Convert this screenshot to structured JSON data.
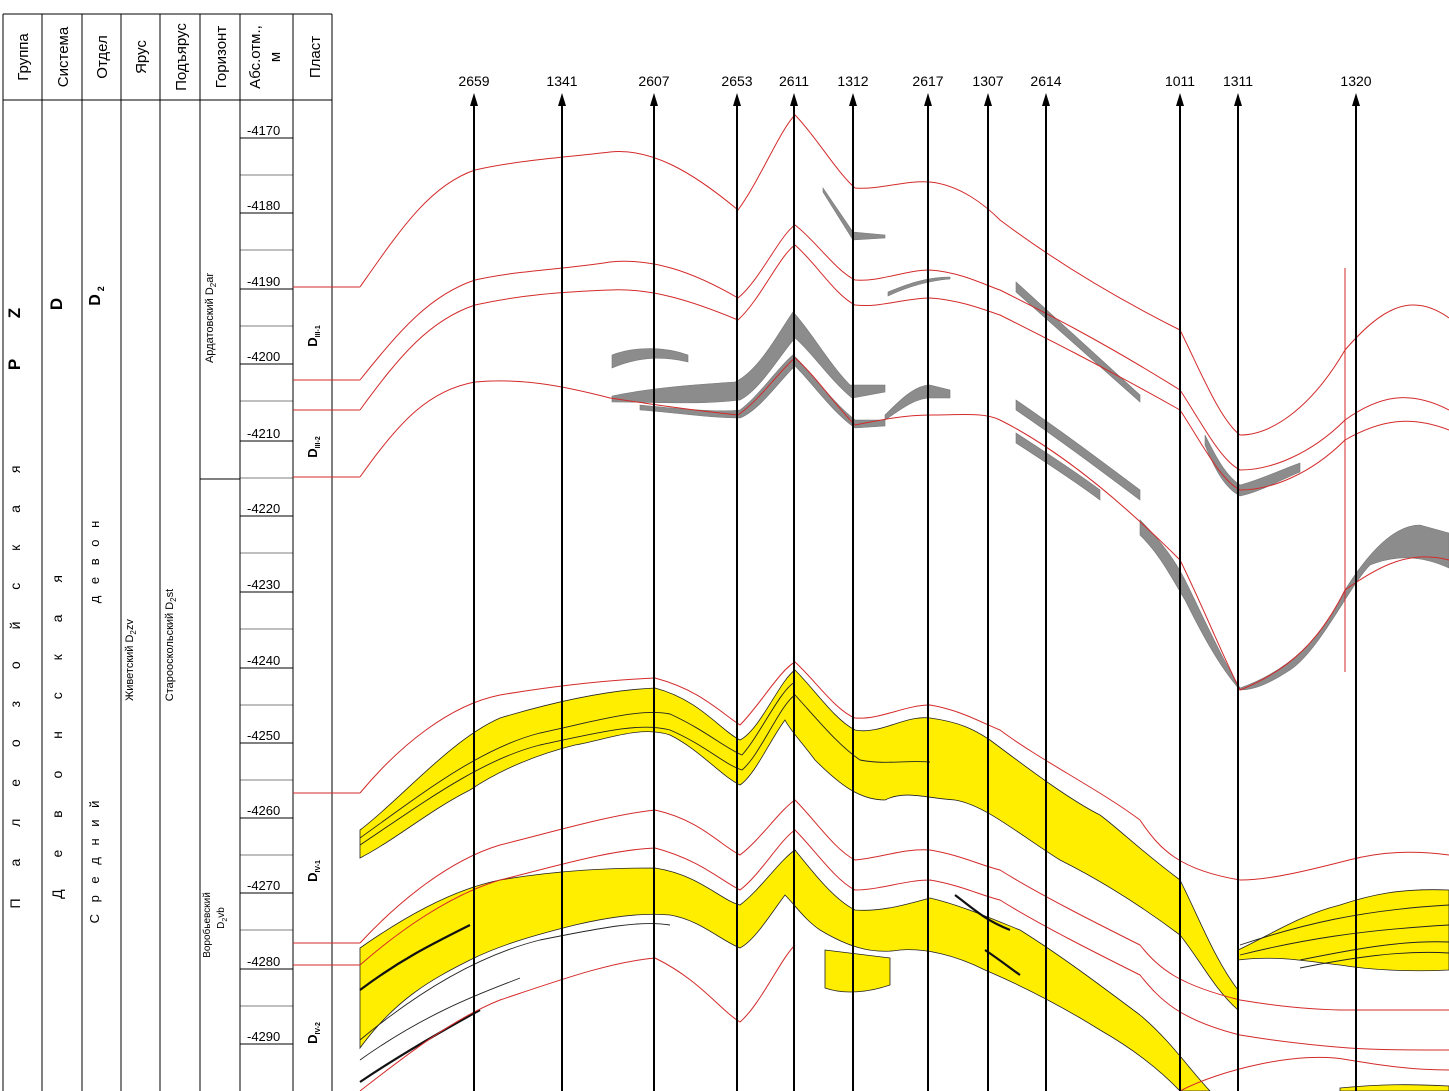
{
  "columns": {
    "headers": [
      "Группа",
      "Система",
      "Отдел",
      "Ярус",
      "Подъярус",
      "Горизонт",
      "Абс.отм.,",
      "м",
      "Пласт"
    ],
    "group": {
      "main": "P Z",
      "sub": "П а л е о з о й с к а я"
    },
    "system": {
      "main": "D",
      "sub": "Д е в о н с к а я"
    },
    "department": {
      "main": "D",
      "main_sub": "2",
      "sub": "С р е д н и й",
      "sub2": "д е в о н"
    },
    "stage": {
      "label": "Живетский D",
      "label_sub": "2",
      "label_tail": "zv"
    },
    "substage": {
      "label": "Старооскольский D",
      "label_sub": "2",
      "label_tail": "st"
    },
    "horizons": [
      {
        "label": "Ардатовский D",
        "sub": "2",
        "tail": "ar"
      },
      {
        "label": "Воробьевский",
        "line2": "D",
        "line2_sub": "2",
        "line2_tail": "vb"
      }
    ],
    "depth_ticks": [
      "-4170",
      "-4180",
      "-4190",
      "-4200",
      "-4210",
      "-4220",
      "-4230",
      "-4240",
      "-4250",
      "-4260",
      "-4270",
      "-4280",
      "-4290"
    ],
    "plasts": [
      {
        "main": "D",
        "sub": "III-1"
      },
      {
        "main": "D",
        "sub": "III-2"
      },
      {
        "main": "D",
        "sub": "IV-1"
      },
      {
        "main": "D",
        "sub": "IV-2"
      }
    ]
  },
  "wells": [
    {
      "name": "2659"
    },
    {
      "name": "1341"
    },
    {
      "name": "2607"
    },
    {
      "name": "2653"
    },
    {
      "name": "2611"
    },
    {
      "name": "1312"
    },
    {
      "name": "2617"
    },
    {
      "name": "1307"
    },
    {
      "name": "2614"
    },
    {
      "name": "1011"
    },
    {
      "name": "1311"
    },
    {
      "name": "1320"
    }
  ],
  "colors": {
    "boundary": "#d42a2a",
    "reservoir": "#ffee00",
    "clay": "#8c8c8c",
    "grid": "#000000"
  }
}
